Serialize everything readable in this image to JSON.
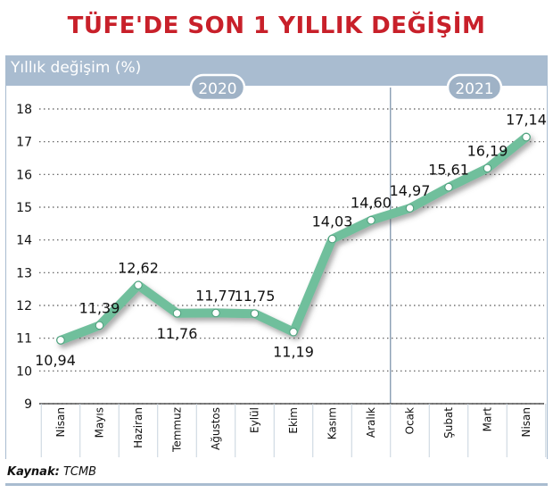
{
  "chart_data": {
    "type": "line",
    "title": "TÜFE'DE SON 1 YILLIK DEĞİŞİM",
    "ylabel": "Yıllık değişim (%)",
    "source_label": "Kaynak:",
    "source_value": "TCMB",
    "period_labels": [
      "2020",
      "2021"
    ],
    "categories": [
      "Nisan",
      "Mayıs",
      "Haziran",
      "Temmuz",
      "Ağustos",
      "Eylül",
      "Ekim",
      "Kasım",
      "Aralık",
      "Ocak",
      "Şubat",
      "Mart",
      "Nisan"
    ],
    "values": [
      10.94,
      11.39,
      12.62,
      11.76,
      11.77,
      11.75,
      11.19,
      14.03,
      14.6,
      14.97,
      15.61,
      16.19,
      17.14
    ],
    "value_labels": [
      "10,94",
      "11,39",
      "12,62",
      "11,76",
      "11,77",
      "11,75",
      "11,19",
      "14,03",
      "14,60",
      "14,97",
      "15,61",
      "16,19",
      "17,14"
    ],
    "ylim": [
      9,
      18
    ],
    "yticks": [
      "9",
      "10",
      "11",
      "12",
      "13",
      "14",
      "15",
      "16",
      "17",
      "18"
    ],
    "grid": true,
    "line_color": "#6fbf9c",
    "accent_color": "#c8202a"
  }
}
